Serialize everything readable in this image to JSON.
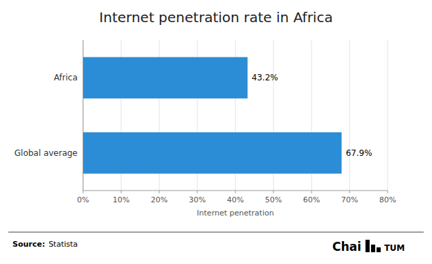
{
  "chart_data": {
    "type": "bar",
    "orientation": "horizontal",
    "title": "Internet penetration rate in Africa",
    "xlabel": "Internet penetration",
    "categories": [
      "Global average",
      "Africa"
    ],
    "values": [
      67.9,
      43.2
    ],
    "value_labels": [
      "67.9%",
      "43.2%"
    ],
    "data_labels": true,
    "color": "#2B8DD6",
    "xlim": [
      0,
      80
    ],
    "xticks": [
      {
        "value": 0,
        "label": "0%"
      },
      {
        "value": 10,
        "label": "10%"
      },
      {
        "value": 20,
        "label": "20%"
      },
      {
        "value": 30,
        "label": "30%"
      },
      {
        "value": 40,
        "label": "40%"
      },
      {
        "value": 50,
        "label": "50%"
      },
      {
        "value": 60,
        "label": "60%"
      },
      {
        "value": 70,
        "label": "70%"
      },
      {
        "value": 80,
        "label": "80%"
      }
    ],
    "grid": true,
    "annotations": [
      "Source:",
      "Statista",
      "Chai",
      "TUM"
    ]
  }
}
